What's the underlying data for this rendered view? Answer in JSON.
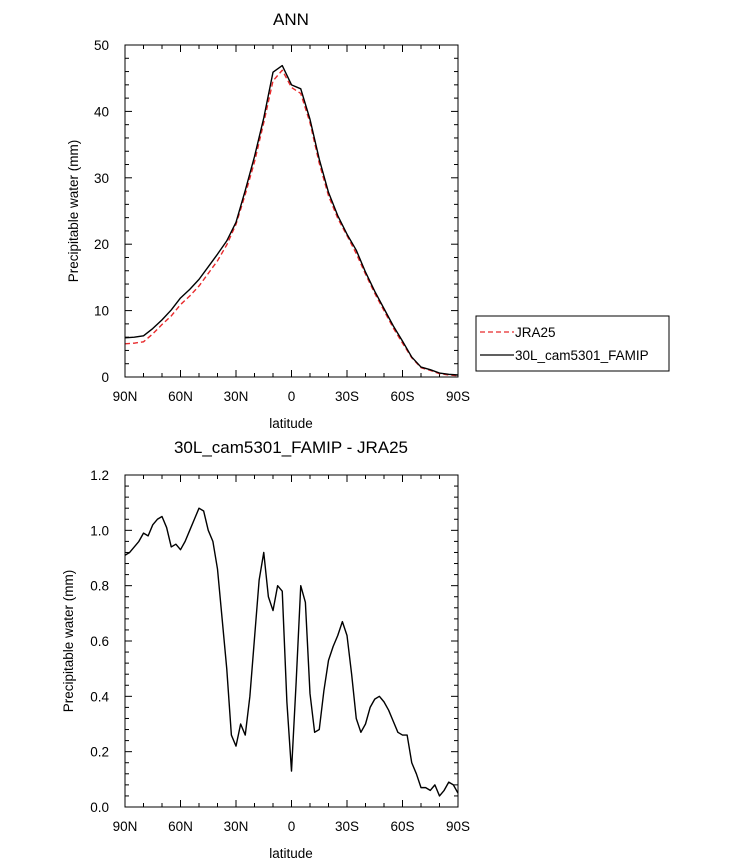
{
  "chart_data": [
    {
      "type": "line",
      "title": "ANN",
      "xlabel": "latitude",
      "ylabel": "Precipitable water (mm)",
      "xlim": [
        90,
        -90
      ],
      "ylim": [
        0,
        50
      ],
      "xticks": [
        {
          "value": 90,
          "label": "90N"
        },
        {
          "value": 60,
          "label": "60N"
        },
        {
          "value": 30,
          "label": "30N"
        },
        {
          "value": 0,
          "label": "0"
        },
        {
          "value": -30,
          "label": "30S"
        },
        {
          "value": -60,
          "label": "60S"
        },
        {
          "value": -90,
          "label": "90S"
        }
      ],
      "yticks": [
        0,
        10,
        20,
        30,
        40,
        50
      ],
      "legend": {
        "placement": "right-outside"
      },
      "series": [
        {
          "name": "JRA25",
          "color": "#e8292b",
          "dash": "dashed",
          "x": [
            90,
            85,
            80,
            75,
            70,
            65,
            60,
            55,
            50,
            45,
            40,
            35,
            30,
            25,
            20,
            15,
            10,
            5,
            0,
            -5,
            -10,
            -15,
            -20,
            -25,
            -30,
            -35,
            -40,
            -45,
            -50,
            -55,
            -60,
            -65,
            -70,
            -75,
            -80,
            -85,
            -90
          ],
          "y": [
            5.0,
            5.1,
            5.3,
            6.5,
            7.9,
            9.2,
            10.9,
            12.2,
            13.7,
            15.6,
            17.5,
            19.9,
            23.0,
            27.5,
            32.4,
            38.3,
            44.6,
            46.2,
            43.6,
            42.7,
            38.3,
            32.2,
            27.3,
            23.9,
            21.3,
            18.6,
            15.5,
            12.6,
            10.0,
            7.4,
            5.1,
            2.9,
            1.4,
            1.0,
            0.5,
            0.3,
            0.2
          ]
        },
        {
          "name": "30L_cam5301_FAMIP",
          "color": "#000000",
          "dash": "solid",
          "x": [
            90,
            85,
            80,
            75,
            70,
            65,
            60,
            55,
            50,
            45,
            40,
            35,
            30,
            25,
            20,
            15,
            10,
            5,
            0,
            -5,
            -10,
            -15,
            -20,
            -25,
            -30,
            -35,
            -40,
            -45,
            -50,
            -55,
            -60,
            -65,
            -70,
            -75,
            -80,
            -85,
            -90
          ],
          "y": [
            5.9,
            6.0,
            6.2,
            7.3,
            8.6,
            10.1,
            11.9,
            13.2,
            14.7,
            16.6,
            18.5,
            20.5,
            23.3,
            28.1,
            33.2,
            39.0,
            45.9,
            46.9,
            44.0,
            43.4,
            38.8,
            32.8,
            27.8,
            24.3,
            21.5,
            19.1,
            15.8,
            12.9,
            10.3,
            7.7,
            5.4,
            3.0,
            1.5,
            1.1,
            0.6,
            0.4,
            0.3
          ]
        }
      ]
    },
    {
      "type": "line",
      "title": "30L_cam5301_FAMIP - JRA25",
      "xlabel": "latitude",
      "ylabel": "Precipitable water (mm)",
      "xlim": [
        90,
        -90
      ],
      "ylim": [
        0,
        1.2
      ],
      "xticks": [
        {
          "value": 90,
          "label": "90N"
        },
        {
          "value": 60,
          "label": "60N"
        },
        {
          "value": 30,
          "label": "30N"
        },
        {
          "value": 0,
          "label": "0"
        },
        {
          "value": -30,
          "label": "30S"
        },
        {
          "value": -60,
          "label": "60S"
        },
        {
          "value": -90,
          "label": "90S"
        }
      ],
      "yticks": [
        "0.0",
        "0.2",
        "0.4",
        "0.6",
        "0.8",
        "1.0",
        "1.2"
      ],
      "series": [
        {
          "color": "#000000",
          "dash": "solid",
          "x": [
            90,
            87.5,
            85,
            82.5,
            80,
            77.5,
            75,
            72.5,
            70,
            67.5,
            65,
            62.5,
            60,
            57.5,
            55,
            52.5,
            50,
            47.5,
            45,
            42.5,
            40,
            37.5,
            35,
            32.5,
            30,
            27.5,
            25,
            22.5,
            20,
            17.5,
            15,
            12.5,
            10,
            7.5,
            5,
            2.5,
            0,
            -2.5,
            -5,
            -7.5,
            -10,
            -12.5,
            -15,
            -17.5,
            -20,
            -22.5,
            -25,
            -27.5,
            -30,
            -32.5,
            -35,
            -37.5,
            -40,
            -42.5,
            -45,
            -47.5,
            -50,
            -52.5,
            -55,
            -57.5,
            -60,
            -62.5,
            -65,
            -67.5,
            -70,
            -72.5,
            -75,
            -77.5,
            -80,
            -82.5,
            -85,
            -87.5,
            -90
          ],
          "y": [
            0.91,
            0.92,
            0.94,
            0.96,
            0.99,
            0.98,
            1.02,
            1.04,
            1.05,
            1.01,
            0.94,
            0.95,
            0.93,
            0.96,
            1.0,
            1.04,
            1.08,
            1.07,
            1.0,
            0.96,
            0.86,
            0.68,
            0.5,
            0.26,
            0.22,
            0.3,
            0.26,
            0.4,
            0.61,
            0.82,
            0.92,
            0.76,
            0.71,
            0.8,
            0.78,
            0.38,
            0.13,
            0.45,
            0.8,
            0.74,
            0.41,
            0.27,
            0.28,
            0.42,
            0.53,
            0.58,
            0.62,
            0.67,
            0.62,
            0.48,
            0.32,
            0.27,
            0.3,
            0.36,
            0.39,
            0.4,
            0.38,
            0.35,
            0.31,
            0.27,
            0.26,
            0.26,
            0.16,
            0.12,
            0.07,
            0.07,
            0.06,
            0.08,
            0.04,
            0.06,
            0.09,
            0.08,
            0.05
          ]
        }
      ]
    }
  ]
}
